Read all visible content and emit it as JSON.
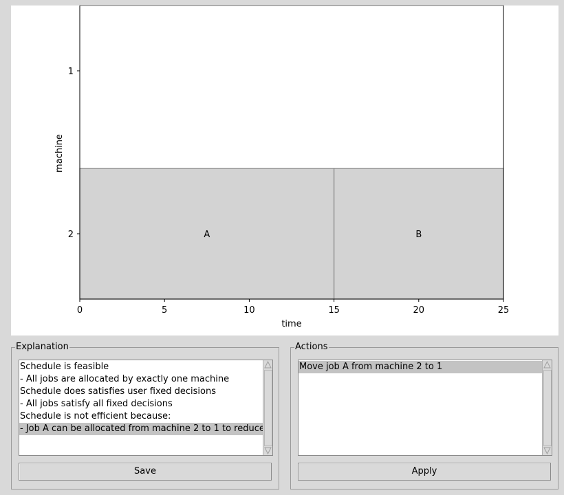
{
  "chart_data": {
    "type": "gantt",
    "xlabel": "time",
    "ylabel": "machine",
    "xlim": [
      0,
      25
    ],
    "x_ticks": [
      "0",
      "5",
      "10",
      "15",
      "20",
      "25"
    ],
    "y_ticks": [
      "1",
      "2"
    ],
    "tasks": [
      {
        "label": "A",
        "machine": 2,
        "start": 0,
        "end": 15
      },
      {
        "label": "B",
        "machine": 2,
        "start": 15,
        "end": 25
      }
    ],
    "bar_color": "#d3d3d3"
  },
  "explanation": {
    "title": "Explanation",
    "lines": [
      "Schedule is feasible",
      " -  All jobs are allocated by exactly one machine",
      "Schedule does satisfies user fixed decisions",
      " -  All jobs satisfy all fixed decisions",
      "Schedule is not efficient because:",
      " -  Job A can be allocated from machine 2 to 1 to reduce"
    ],
    "selected_index": 5,
    "save_label": "Save"
  },
  "actions": {
    "title": "Actions",
    "items": [
      "Move job A from machine 2 to 1"
    ],
    "selected_index": 0,
    "apply_label": "Apply"
  }
}
